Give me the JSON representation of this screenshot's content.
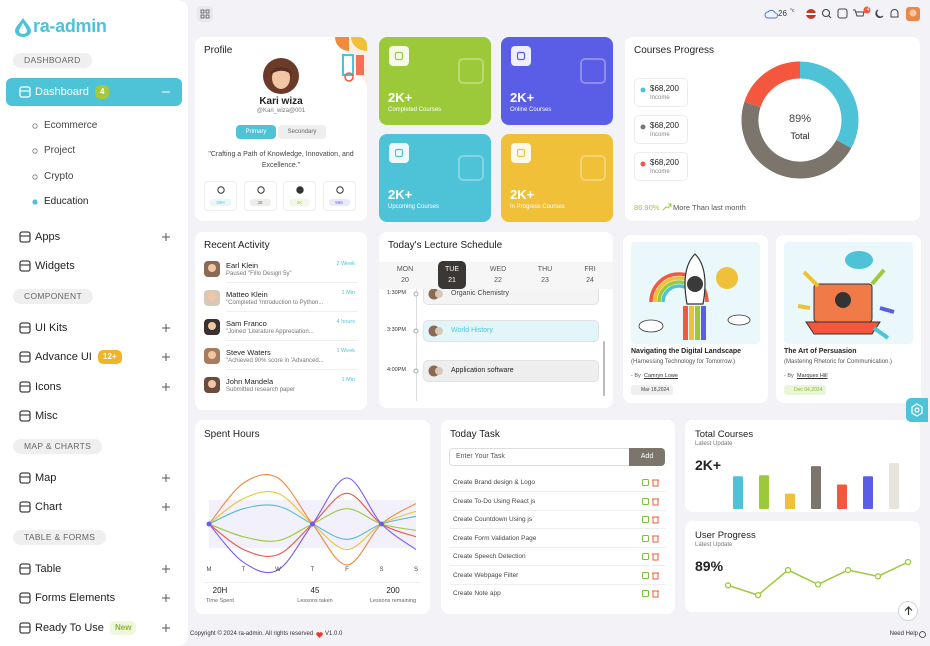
{
  "sidebar": {
    "brand": "ra-admin",
    "sections": [
      {
        "title": "DASHBOARD",
        "items": [
          {
            "label": "Dashboard",
            "badge": "4",
            "active": true,
            "expanded": true,
            "active_child": 3,
            "children": [
              "Ecommerce",
              "Project",
              "Crypto",
              "Education"
            ]
          },
          {
            "label": "Apps",
            "expandable": true
          },
          {
            "label": "Widgets"
          }
        ]
      },
      {
        "title": "COMPONENT",
        "items": [
          {
            "label": "UI Kits",
            "expandable": true
          },
          {
            "label": "Advance UI",
            "badge": "12+",
            "expandable": true
          },
          {
            "label": "Icons",
            "expandable": true
          },
          {
            "label": "Misc"
          }
        ]
      },
      {
        "title": "MAP & CHARTS",
        "items": [
          {
            "label": "Map",
            "expandable": true
          },
          {
            "label": "Chart",
            "expandable": true
          }
        ]
      },
      {
        "title": "TABLE & FORMS",
        "items": [
          {
            "label": "Table",
            "expandable": true
          },
          {
            "label": "Forms Elements",
            "expandable": true
          },
          {
            "label": "Ready To Use",
            "badge": "New",
            "expandable": true
          }
        ]
      }
    ]
  },
  "header": {
    "temperature": "26",
    "unit": "°c",
    "cart_count": "4"
  },
  "profile": {
    "title": "Profile",
    "name": "Kari wiza",
    "handle": "@Kari_wiza@001",
    "tabs": [
      "Primary",
      "Secondary"
    ],
    "quote": "\"Crafting a Path of Knowledge, Innovation, and Excellence.\"",
    "stats": [
      "20H",
      "38",
      "2K",
      "566"
    ]
  },
  "stat_cards": [
    {
      "value": "2K+",
      "label": "Completed Courses",
      "color": "#9cc93a"
    },
    {
      "value": "2K+",
      "label": "Online Courses",
      "color": "#5a5de6"
    },
    {
      "value": "2K+",
      "label": "Upcoming Courses",
      "color": "#4ec3d8"
    },
    {
      "value": "2K+",
      "label": "In Progress Courses",
      "color": "#efc038"
    }
  ],
  "courses_progress": {
    "title": "Courses Progress",
    "legend": [
      {
        "value": "$68,200",
        "label": "Income",
        "color": "#4ec3d8",
        "share": 33
      },
      {
        "value": "$68,200",
        "label": "Income",
        "color": "#7b756c",
        "share": 47
      },
      {
        "value": "$68,200",
        "label": "Income",
        "color": "#f5573e",
        "share": 20
      }
    ],
    "center_value": "89%",
    "center_label": "Total",
    "change": "86.90%",
    "change_text": "More Than last month"
  },
  "recent_activity": {
    "title": "Recent Activity",
    "items": [
      {
        "name": "Earl Klein",
        "text": "Paused \"Fillo Design 5y\"",
        "time": "2 Week"
      },
      {
        "name": "Matteo Klein",
        "text": "\"Completed 'Introduction to Python...",
        "time": "1 Min"
      },
      {
        "name": "Sam Franco",
        "text": "\"Joined 'Literature Appreciation...",
        "time": "4 hours"
      },
      {
        "name": "Steve Waters",
        "text": "\"Achieved 90% score in 'Advanced...",
        "time": "1 Week"
      },
      {
        "name": "John Mandela",
        "text": "Submitted research paper",
        "time": "1 Min"
      }
    ]
  },
  "lecture_schedule": {
    "title": "Today's Lecture Schedule",
    "days": [
      {
        "name": "MON",
        "date": "20"
      },
      {
        "name": "TUE",
        "date": "21"
      },
      {
        "name": "WED",
        "date": "22"
      },
      {
        "name": "THU",
        "date": "23"
      },
      {
        "name": "FRI",
        "date": "24"
      }
    ],
    "active_day": 1,
    "events": [
      {
        "time": "1:30PM",
        "title": "Organic Chemistry"
      },
      {
        "time": "3:30PM",
        "title": "World History"
      },
      {
        "time": "4:00PM",
        "title": "Application software"
      }
    ]
  },
  "blog_cards": [
    {
      "title": "Navigating the Digital Landscape",
      "subtitle": "(Harnessing Technology for Tomorrow.)",
      "by": "- By",
      "author": "Camryn Lowe",
      "date": "Mar 18,2024"
    },
    {
      "title": "The Art of Persuasion",
      "subtitle": "(Mastering Rhetoric for Communication.)",
      "by": "- By",
      "author": "Marques Hill",
      "date": "Dec 04,2024"
    }
  ],
  "spent_hours": {
    "title": "Spent Hours",
    "days": [
      "M",
      "T",
      "W",
      "T",
      "F",
      "S",
      "S"
    ],
    "series": [
      {
        "color": "#f08a3c",
        "values": [
          50,
          82,
          86,
          50,
          18,
          50,
          66
        ]
      },
      {
        "color": "#7a5cf0",
        "values": [
          50,
          20,
          14,
          50,
          86,
          50,
          30
        ]
      },
      {
        "color": "#e7c53b",
        "values": [
          50,
          70,
          74,
          50,
          30,
          50,
          60
        ]
      },
      {
        "color": "#e8574a",
        "values": [
          50,
          30,
          26,
          50,
          74,
          50,
          40
        ]
      },
      {
        "color": "#55b8d6",
        "values": [
          50,
          62,
          64,
          50,
          38,
          50,
          56
        ]
      },
      {
        "color": "#9cc93a",
        "values": [
          50,
          40,
          37,
          50,
          62,
          50,
          45
        ]
      }
    ],
    "stats": [
      {
        "value": "20H",
        "label": "Time Spent"
      },
      {
        "value": "45",
        "label": "Lessons taken"
      },
      {
        "value": "200",
        "label": "Lessons remaining"
      }
    ]
  },
  "today_task": {
    "title": "Today Task",
    "placeholder": "Enter Your Task",
    "button": "Add",
    "tasks": [
      "Create Brand design & Logo",
      "Create To-Do Using React js",
      "Create Countdown Using js",
      "Create Form Validation Page",
      "Create Speech Detection",
      "Create Webpage Filter",
      "Create Note app"
    ]
  },
  "total_courses": {
    "title": "Total Courses",
    "subtitle": "Latest Update",
    "value": "2K+",
    "values": [
      32,
      33,
      15,
      42,
      24,
      32,
      45
    ],
    "colors": [
      "#4ec3d8",
      "#9cc93a",
      "#efc038",
      "#7b756c",
      "#f5573e",
      "#5a5de6",
      "#e7e4de"
    ]
  },
  "user_progress": {
    "title": "User Progress",
    "subtitle": "Latest Update",
    "value": "89%",
    "values": [
      22,
      11,
      39,
      23,
      39,
      32,
      48
    ],
    "color": "#9cc93a"
  },
  "footer": {
    "copyright": "Copyright © 2024 ra-admin. All rights reserved",
    "version": "V1.0.0",
    "help": "Need Help"
  }
}
